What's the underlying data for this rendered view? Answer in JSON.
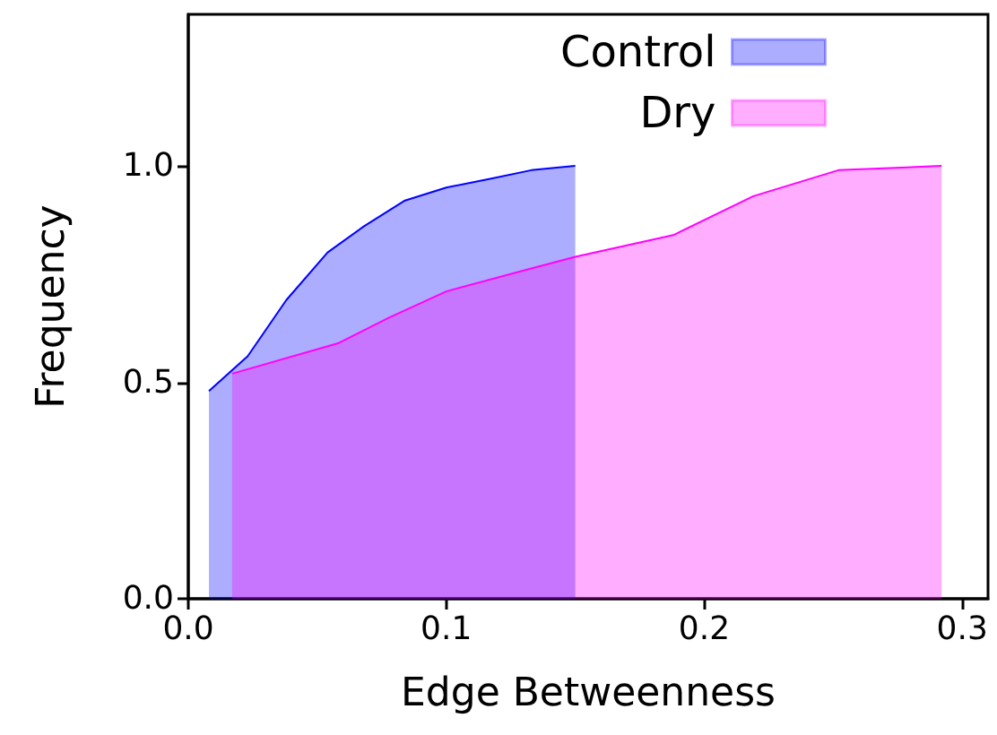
{
  "chart_data": {
    "type": "area",
    "xlabel": "Edge Betweenness",
    "ylabel": "Frequency",
    "xlim": [
      0,
      0.31
    ],
    "ylim": [
      0,
      1.35
    ],
    "xticks": [
      {
        "value": 0,
        "label": "0.0"
      },
      {
        "value": 0.1,
        "label": "0.1"
      },
      {
        "value": 0.2,
        "label": "0.2"
      },
      {
        "value": 0.3,
        "label": "0.3"
      }
    ],
    "yticks": [
      {
        "value": 0,
        "label": "0.0"
      },
      {
        "value": 0.5,
        "label": "0.5"
      },
      {
        "value": 1,
        "label": "1.0"
      }
    ],
    "grid": false,
    "legend": "top right",
    "marker": "none",
    "line_style": "solid",
    "series": [
      {
        "name": "Control",
        "color": "#0000ff",
        "x": [
          0.008,
          0.023,
          0.038,
          0.054,
          0.068,
          0.084,
          0.1,
          0.117,
          0.133,
          0.15
        ],
        "values": [
          0.48,
          0.56,
          0.69,
          0.8,
          0.86,
          0.92,
          0.95,
          0.97,
          0.99,
          1.0
        ]
      },
      {
        "name": "Dry",
        "color": "#ff00ff",
        "x": [
          0.017,
          0.058,
          0.078,
          0.1,
          0.131,
          0.15,
          0.188,
          0.219,
          0.252,
          0.292
        ],
        "values": [
          0.52,
          0.59,
          0.65,
          0.71,
          0.76,
          0.79,
          0.84,
          0.93,
          0.99,
          1.0
        ]
      }
    ]
  }
}
